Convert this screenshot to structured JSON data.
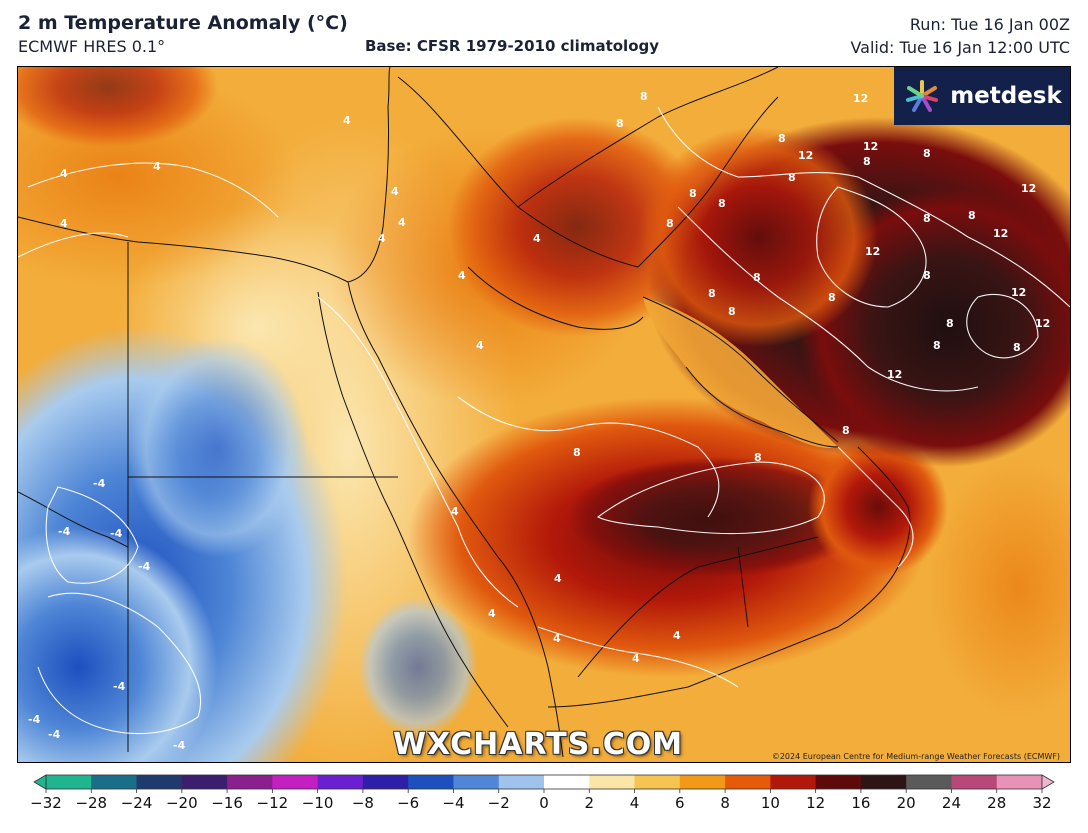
{
  "header": {
    "title": "2 m Temperature Anomaly (°C)",
    "model": "ECMWF HRES 0.1°",
    "base": "Base: CFSR 1979-2010 climatology",
    "run": "Run: Tue 16 Jan 00Z",
    "valid": "Valid: Tue 16 Jan 12:00 UTC"
  },
  "branding": {
    "logo_text": "metdesk",
    "watermark": "WXCHARTS.COM",
    "copyright": "©2024 European Centre for Medium-range Weather Forecasts (ECMWF)"
  },
  "map": {
    "contour_labels": [
      "-4",
      "4",
      "8",
      "12"
    ],
    "region": "Middle East / Arabian Peninsula / Northeast Africa"
  },
  "colorbar": {
    "ticks": [
      "−32",
      "−28",
      "−24",
      "−20",
      "−16",
      "−12",
      "−10",
      "−8",
      "−6",
      "−4",
      "−2",
      "0",
      "2",
      "4",
      "6",
      "8",
      "10",
      "12",
      "16",
      "20",
      "24",
      "28",
      "32"
    ],
    "colors": [
      "#1fb58f",
      "#1a6e8a",
      "#1e3a6e",
      "#3b1f6e",
      "#8a1f8e",
      "#c41fc0",
      "#6a1fd0",
      "#2d1fa8",
      "#1d4fbf",
      "#4f86d6",
      "#9fc3ec",
      "#ffffff",
      "#fbe6a8",
      "#f6c450",
      "#f29a18",
      "#e65b0a",
      "#b2180a",
      "#5e0a0a",
      "#2e1414",
      "#5a5a5a",
      "#b84878",
      "#e892b8"
    ]
  }
}
